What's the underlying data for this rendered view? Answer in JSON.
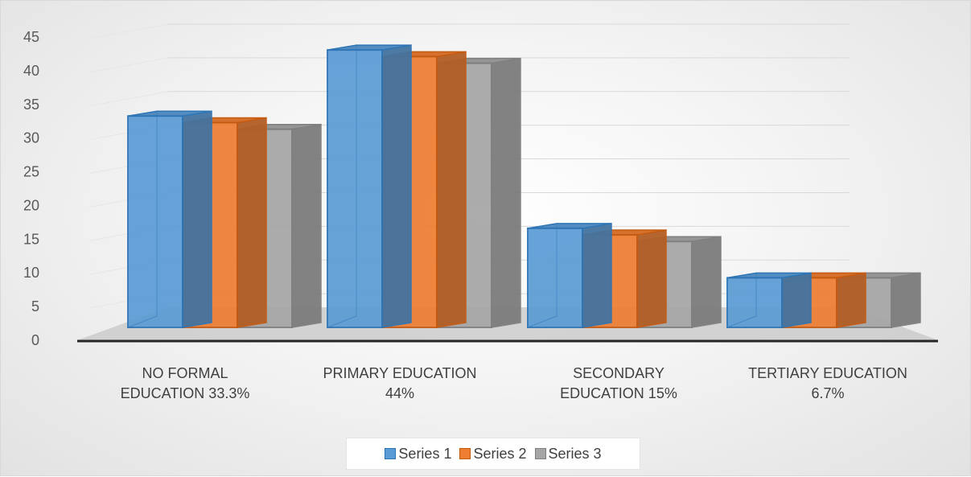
{
  "chart_data": {
    "type": "bar",
    "categories": [
      [
        "NO FORMAL",
        "EDUCATION 33.3%"
      ],
      [
        "PRIMARY EDUCATION",
        "44%"
      ],
      [
        "SECONDARY",
        "EDUCATION 15%"
      ],
      [
        "TERTIARY EDUCATION",
        "6.7%"
      ]
    ],
    "series": [
      {
        "name": "Series 1",
        "values": [
          32,
          42,
          15,
          7.5
        ],
        "color": "#5b9bd5",
        "edge": "#2e75b6"
      },
      {
        "name": "Series 2",
        "values": [
          31,
          41,
          14,
          7.5
        ],
        "color": "#ed7d31",
        "edge": "#c55a11"
      },
      {
        "name": "Series 3",
        "values": [
          30,
          40,
          13,
          7.5
        ],
        "color": "#a5a5a5",
        "edge": "#7f7f7f"
      }
    ],
    "ylim": [
      0,
      45
    ],
    "yticks": [
      "0",
      "5",
      "10",
      "15",
      "20",
      "25",
      "30",
      "35",
      "40",
      "45"
    ],
    "grid": true,
    "legend_position": "bottom",
    "style": "3d-clustered-column"
  }
}
